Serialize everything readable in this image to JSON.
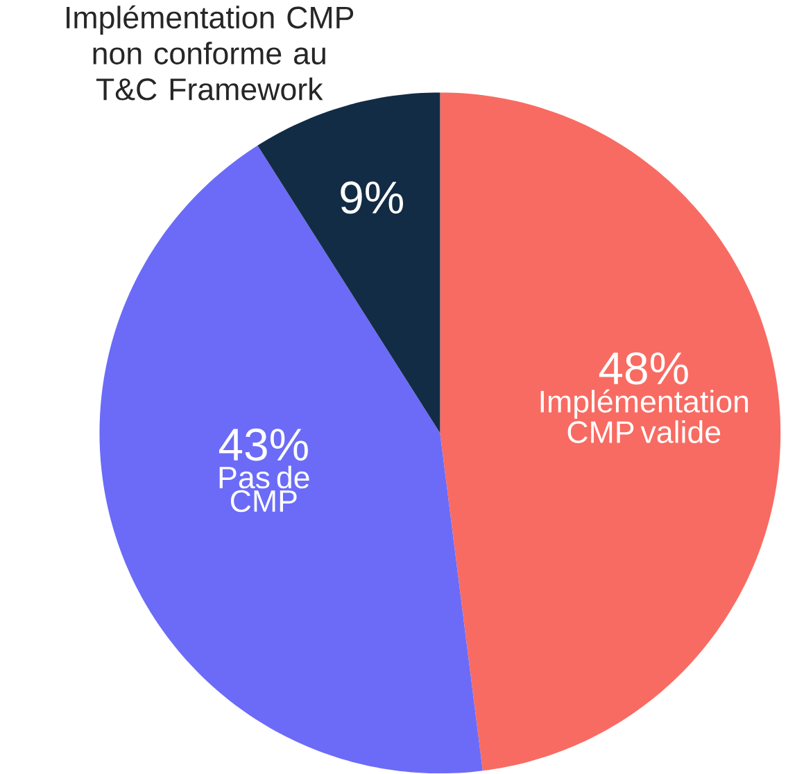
{
  "chart_data": {
    "type": "pie",
    "categories": [
      "Implémentation CMP valide",
      "Pas de CMP",
      "Implémentation CMP non conforme au T&C Framework"
    ],
    "values": [
      48,
      43,
      9
    ],
    "colors": [
      "#f86b62",
      "#6b6bf8",
      "#132c45"
    ],
    "value_labels": [
      "48%",
      "43%",
      "9%"
    ]
  }
}
